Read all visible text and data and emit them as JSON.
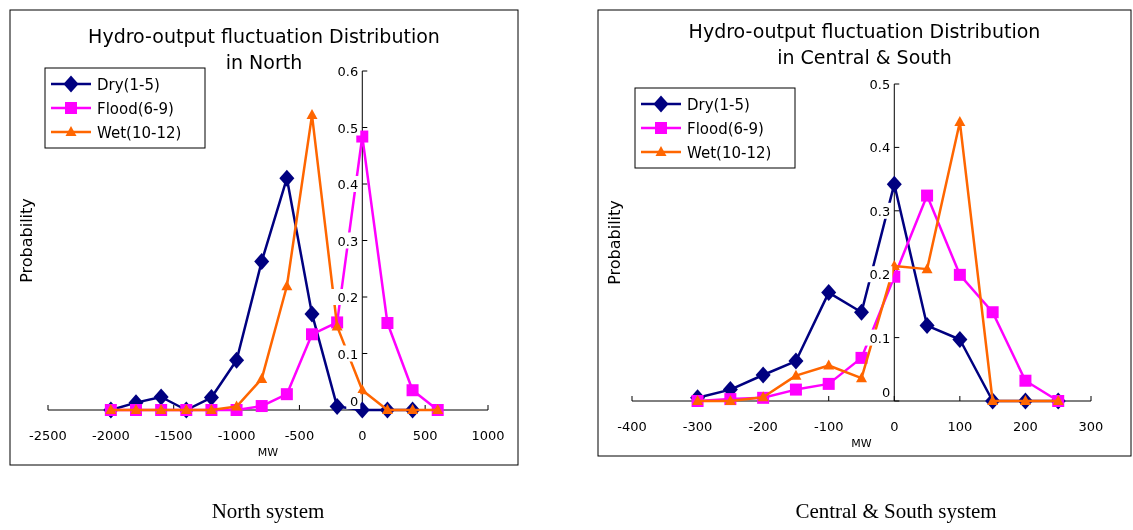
{
  "chart_data": [
    {
      "type": "line",
      "title": "Hydro-output fluctuation Distribution\nin North",
      "xlabel": "MW",
      "ylabel": "Probability",
      "annotations": [
        "North system"
      ],
      "x": [
        -2000,
        -1800,
        -1600,
        -1400,
        -1200,
        -1000,
        -800,
        -600,
        -400,
        -200,
        0,
        200,
        400,
        600
      ],
      "xlim": [
        -2500,
        1000
      ],
      "xticks": [
        -2500,
        -2000,
        -1500,
        -1000,
        -500,
        0,
        500,
        1000
      ],
      "ylim": [
        0,
        0.6
      ],
      "yticks": [
        0,
        0.1,
        0.2,
        0.3,
        0.4,
        0.5,
        0.6
      ],
      "legend": "top left",
      "grid": false,
      "series": [
        {
          "name": "Dry(1-5)",
          "color": "#000080",
          "marker": "diamond",
          "values": [
            0,
            0.013,
            0.023,
            0,
            0.022,
            0.088,
            0.263,
            0.41,
            0.17,
            0.006,
            0,
            0,
            0,
            null
          ]
        },
        {
          "name": "Flood(6-9)",
          "color": "#ff00ff",
          "marker": "square",
          "values": [
            0,
            0,
            0,
            0,
            0,
            0,
            0.007,
            0.028,
            0.134,
            0.155,
            0.484,
            0.154,
            0.035,
            0
          ]
        },
        {
          "name": "Wet(10-12)",
          "color": "#ff6600",
          "marker": "triangle",
          "values": [
            0,
            0,
            0,
            0,
            0,
            0.006,
            0.055,
            0.219,
            0.522,
            0.148,
            0.035,
            0,
            0,
            0
          ]
        }
      ]
    },
    {
      "type": "line",
      "title": "Hydro-output fluctuation Distribution\nin Central & South",
      "xlabel": "MW",
      "ylabel": "Probability",
      "annotations": [
        "Central & South system"
      ],
      "x": [
        -300,
        -250,
        -200,
        -150,
        -100,
        -50,
        0,
        50,
        100,
        150,
        200,
        250
      ],
      "xlim": [
        -400,
        300
      ],
      "xticks": [
        -400,
        -300,
        -200,
        -100,
        0,
        100,
        200,
        300
      ],
      "ylim": [
        0,
        0.5
      ],
      "yticks": [
        0,
        0.1,
        0.2,
        0.3,
        0.4,
        0.5
      ],
      "legend": "top left",
      "grid": false,
      "series": [
        {
          "name": "Dry(1-5)",
          "color": "#000080",
          "marker": "diamond",
          "values": [
            0.005,
            0.018,
            0.041,
            0.063,
            0.171,
            0.14,
            0.342,
            0.119,
            0.097,
            0,
            0,
            0
          ]
        },
        {
          "name": "Flood(6-9)",
          "color": "#ff00ff",
          "marker": "square",
          "values": [
            0,
            0.003,
            0.005,
            0.018,
            0.027,
            0.068,
            0.196,
            0.324,
            0.199,
            0.14,
            0.032,
            0
          ]
        },
        {
          "name": "Wet(10-12)",
          "color": "#ff6600",
          "marker": "triangle",
          "values": [
            0,
            0,
            0.006,
            0.04,
            0.056,
            0.036,
            0.213,
            0.208,
            0.44,
            0,
            0,
            0
          ]
        }
      ]
    }
  ]
}
